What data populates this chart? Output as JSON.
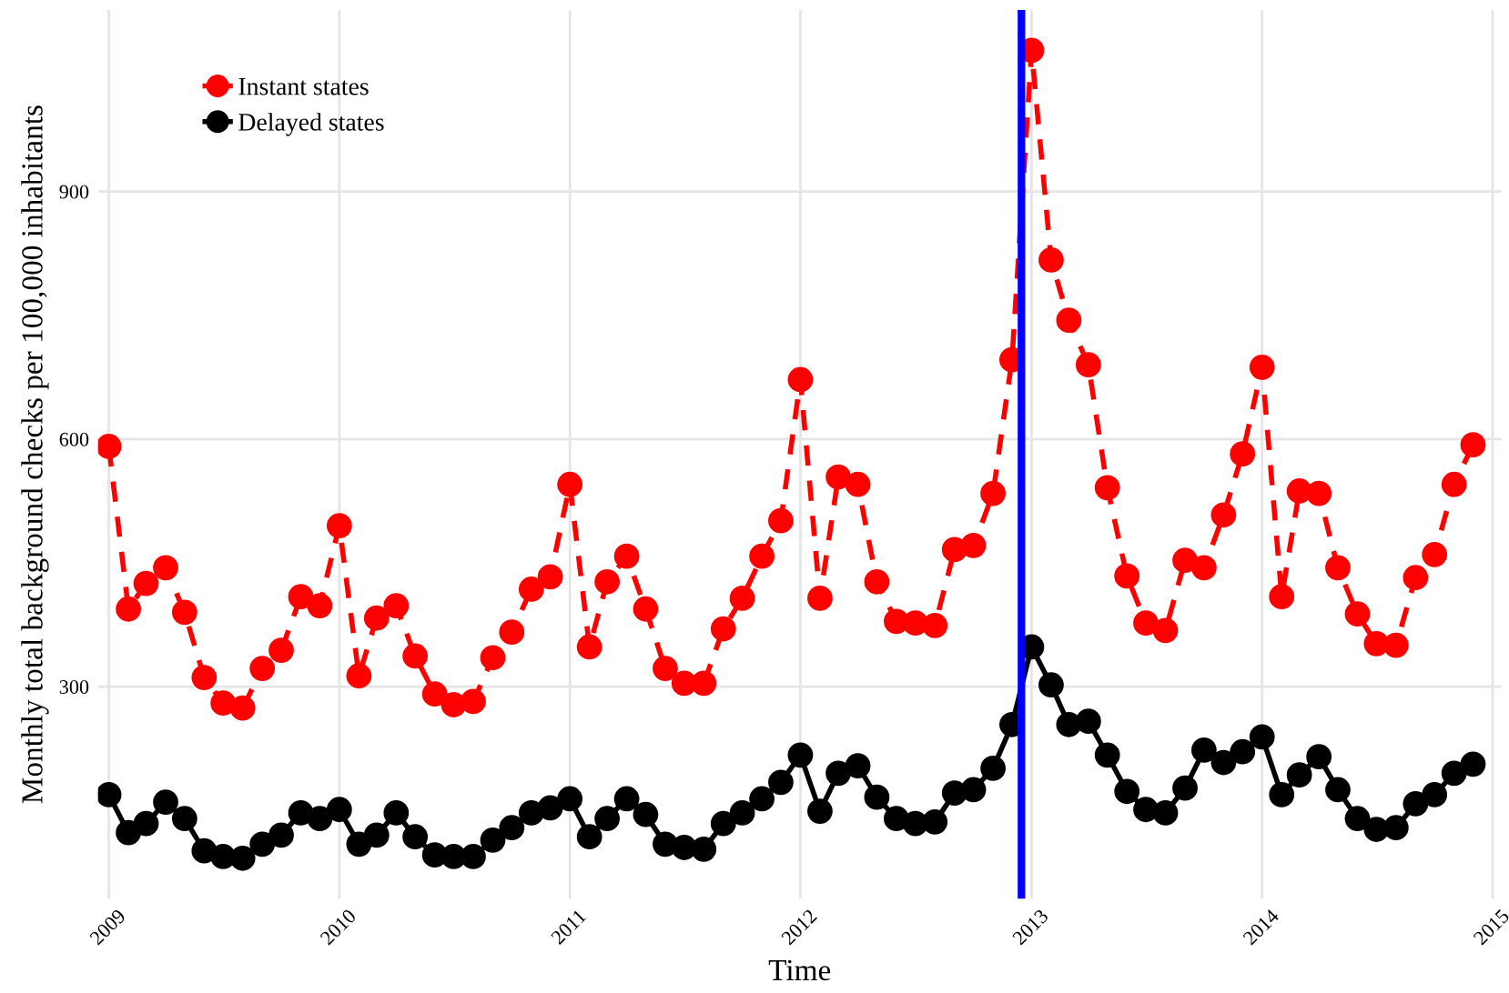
{
  "chart_data": {
    "type": "line",
    "xlabel": "Time",
    "ylabel": "Monthly total background checks per 100,000 inhabitants",
    "x": [
      "2009-01",
      "2009-02",
      "2009-03",
      "2009-04",
      "2009-05",
      "2009-06",
      "2009-07",
      "2009-08",
      "2009-09",
      "2009-10",
      "2009-11",
      "2009-12",
      "2010-01",
      "2010-02",
      "2010-03",
      "2010-04",
      "2010-05",
      "2010-06",
      "2010-07",
      "2010-08",
      "2010-09",
      "2010-10",
      "2010-11",
      "2010-12",
      "2011-01",
      "2011-02",
      "2011-03",
      "2011-04",
      "2011-05",
      "2011-06",
      "2011-07",
      "2011-08",
      "2011-09",
      "2011-10",
      "2011-11",
      "2011-12",
      "2012-01",
      "2012-02",
      "2012-03",
      "2012-04",
      "2012-05",
      "2012-06",
      "2012-07",
      "2012-08",
      "2012-09",
      "2012-10",
      "2012-11",
      "2012-12",
      "2013-01",
      "2013-02",
      "2013-03",
      "2013-04",
      "2013-05",
      "2013-06",
      "2013-07",
      "2013-08",
      "2013-09",
      "2013-10",
      "2013-11",
      "2013-12",
      "2014-01",
      "2014-02",
      "2014-03",
      "2014-04",
      "2014-05",
      "2014-06",
      "2014-07",
      "2014-08",
      "2014-09",
      "2014-10",
      "2014-11",
      "2014-12"
    ],
    "series": [
      {
        "name": "Instant states",
        "color": "#ff0000",
        "line_style": "dashed",
        "values": [
          591,
          394,
          425,
          444,
          390,
          311,
          280,
          274,
          322,
          344,
          409,
          398,
          495,
          313,
          383,
          398,
          337,
          291,
          278,
          282,
          335,
          366,
          418,
          433,
          545,
          348,
          427,
          458,
          394,
          322,
          304,
          304,
          370,
          407,
          458,
          501,
          672,
          407,
          554,
          545,
          427,
          379,
          377,
          374,
          466,
          471,
          534,
          696,
          1071,
          817,
          744,
          690,
          541,
          434,
          377,
          368,
          453,
          444,
          508,
          582,
          687,
          409,
          537,
          534,
          444,
          388,
          352,
          350,
          432,
          460,
          545,
          593
        ]
      },
      {
        "name": "Delayed states",
        "color": "#000000",
        "line_style": "solid",
        "values": [
          169,
          123,
          134,
          160,
          140,
          101,
          94,
          92,
          109,
          120,
          147,
          140,
          151,
          109,
          120,
          147,
          118,
          96,
          94,
          94,
          114,
          129,
          147,
          153,
          164,
          118,
          140,
          164,
          145,
          109,
          105,
          103,
          134,
          147,
          164,
          184,
          217,
          149,
          195,
          204,
          166,
          140,
          134,
          136,
          171,
          175,
          201,
          254,
          348,
          302,
          254,
          258,
          217,
          173,
          151,
          147,
          177,
          223,
          208,
          221,
          239,
          169,
          193,
          215,
          175,
          140,
          127,
          129,
          158,
          169,
          195,
          206
        ]
      }
    ],
    "marker": "circle",
    "xlim": [
      "2008-12-15",
      "2015-01-15"
    ],
    "xticks": [
      {
        "value": "2009-01-01",
        "label": "2009"
      },
      {
        "value": "2010-01-01",
        "label": "2010"
      },
      {
        "value": "2011-01-01",
        "label": "2011"
      },
      {
        "value": "2012-01-01",
        "label": "2012"
      },
      {
        "value": "2013-01-01",
        "label": "2013"
      },
      {
        "value": "2014-01-01",
        "label": "2014"
      },
      {
        "value": "2015-01-01",
        "label": "2015"
      }
    ],
    "ylim": [
      43,
      1120
    ],
    "yticks": [
      300,
      600,
      900
    ],
    "ref_lines": [
      {
        "axis": "x",
        "value": "2012-12-16",
        "color": "#0000ff"
      }
    ],
    "grid": true,
    "legend": "top left"
  }
}
